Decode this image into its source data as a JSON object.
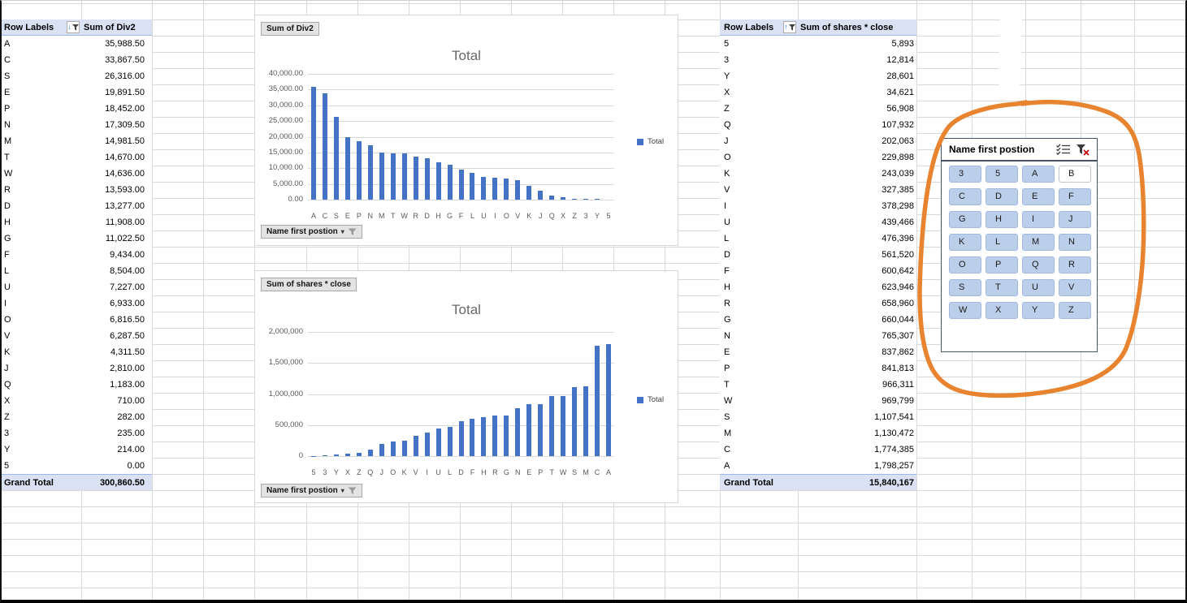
{
  "left_pivot": {
    "header": {
      "row_labels": "Row Labels",
      "values": "Sum of Div2",
      "sort": "descending"
    },
    "rows": [
      [
        "A",
        "35,988.50"
      ],
      [
        "C",
        "33,867.50"
      ],
      [
        "S",
        "26,316.00"
      ],
      [
        "E",
        "19,891.50"
      ],
      [
        "P",
        "18,452.00"
      ],
      [
        "N",
        "17,309.50"
      ],
      [
        "M",
        "14,981.50"
      ],
      [
        "T",
        "14,670.00"
      ],
      [
        "W",
        "14,636.00"
      ],
      [
        "R",
        "13,593.00"
      ],
      [
        "D",
        "13,277.00"
      ],
      [
        "H",
        "11,908.00"
      ],
      [
        "G",
        "11,022.50"
      ],
      [
        "F",
        "9,434.00"
      ],
      [
        "L",
        "8,504.00"
      ],
      [
        "U",
        "7,227.00"
      ],
      [
        "I",
        "6,933.00"
      ],
      [
        "O",
        "6,816.50"
      ],
      [
        "V",
        "6,287.50"
      ],
      [
        "K",
        "4,311.50"
      ],
      [
        "J",
        "2,810.00"
      ],
      [
        "Q",
        "1,183.00"
      ],
      [
        "X",
        "710.00"
      ],
      [
        "Z",
        "282.00"
      ],
      [
        "3",
        "235.00"
      ],
      [
        "Y",
        "214.00"
      ],
      [
        "5",
        "0.00"
      ]
    ],
    "grand_total": {
      "label": "Grand Total",
      "value": "300,860.50"
    }
  },
  "right_pivot": {
    "header": {
      "row_labels": "Row Labels",
      "values": "Sum of shares * close",
      "sort": "ascending"
    },
    "rows": [
      [
        "5",
        "5,893"
      ],
      [
        "3",
        "12,814"
      ],
      [
        "Y",
        "28,601"
      ],
      [
        "X",
        "34,621"
      ],
      [
        "Z",
        "56,908"
      ],
      [
        "Q",
        "107,932"
      ],
      [
        "J",
        "202,063"
      ],
      [
        "O",
        "229,898"
      ],
      [
        "K",
        "243,039"
      ],
      [
        "V",
        "327,385"
      ],
      [
        "I",
        "378,298"
      ],
      [
        "U",
        "439,466"
      ],
      [
        "L",
        "476,396"
      ],
      [
        "D",
        "561,520"
      ],
      [
        "F",
        "600,642"
      ],
      [
        "H",
        "623,946"
      ],
      [
        "R",
        "658,960"
      ],
      [
        "G",
        "660,044"
      ],
      [
        "N",
        "765,307"
      ],
      [
        "E",
        "837,862"
      ],
      [
        "P",
        "841,813"
      ],
      [
        "T",
        "966,311"
      ],
      [
        "W",
        "969,799"
      ],
      [
        "S",
        "1,107,541"
      ],
      [
        "M",
        "1,130,472"
      ],
      [
        "C",
        "1,774,385"
      ],
      [
        "A",
        "1,798,257"
      ]
    ],
    "grand_total": {
      "label": "Grand Total",
      "value": "15,840,167"
    }
  },
  "chart_data": [
    {
      "type": "bar",
      "title": "Total",
      "value_field_button": "Sum of Div2",
      "axis_field_button": "Name first postion",
      "legend": [
        "Total"
      ],
      "legend_position": "right",
      "grid": true,
      "categories": [
        "A",
        "C",
        "S",
        "E",
        "P",
        "N",
        "M",
        "T",
        "W",
        "R",
        "D",
        "H",
        "G",
        "F",
        "L",
        "U",
        "I",
        "O",
        "V",
        "K",
        "J",
        "Q",
        "X",
        "Z",
        "3",
        "Y",
        "5"
      ],
      "values": [
        35988.5,
        33867.5,
        26316,
        19891.5,
        18452,
        17309.5,
        14981.5,
        14670,
        14636,
        13593,
        13277,
        11908,
        11022.5,
        9434,
        8504,
        7227,
        6933,
        6816.5,
        6287.5,
        4311.5,
        2810,
        1183,
        710,
        282,
        235,
        214,
        0
      ],
      "ylim": [
        0,
        40000
      ],
      "yticks": [
        "40,000.00",
        "35,000.00",
        "30,000.00",
        "25,000.00",
        "20,000.00",
        "15,000.00",
        "10,000.00",
        "5,000.00",
        "0.00"
      ]
    },
    {
      "type": "bar",
      "title": "Total",
      "value_field_button": "Sum of shares * close",
      "axis_field_button": "Name first postion",
      "legend": [
        "Total"
      ],
      "legend_position": "right",
      "grid": true,
      "categories": [
        "5",
        "3",
        "Y",
        "X",
        "Z",
        "Q",
        "J",
        "O",
        "K",
        "V",
        "I",
        "U",
        "L",
        "D",
        "F",
        "H",
        "R",
        "G",
        "N",
        "E",
        "P",
        "T",
        "W",
        "S",
        "M",
        "C",
        "A"
      ],
      "values": [
        5893,
        12814,
        28601,
        34621,
        56908,
        107932,
        202063,
        229898,
        243039,
        327385,
        378298,
        439466,
        476396,
        561520,
        600642,
        623946,
        658960,
        660044,
        765307,
        837862,
        841813,
        966311,
        969799,
        1107541,
        1130472,
        1774385,
        1798257
      ],
      "ylim": [
        0,
        2000000
      ],
      "yticks": [
        "2,000,000",
        "1,500,000",
        "1,000,000",
        "500,000",
        "0"
      ]
    }
  ],
  "slicer": {
    "title": "Name first postion",
    "items": [
      {
        "label": "3",
        "selected": true
      },
      {
        "label": "5",
        "selected": true
      },
      {
        "label": "A",
        "selected": true
      },
      {
        "label": "B",
        "selected": false
      },
      {
        "label": "C",
        "selected": true
      },
      {
        "label": "D",
        "selected": true
      },
      {
        "label": "E",
        "selected": true
      },
      {
        "label": "F",
        "selected": true
      },
      {
        "label": "G",
        "selected": true
      },
      {
        "label": "H",
        "selected": true
      },
      {
        "label": "I",
        "selected": true
      },
      {
        "label": "J",
        "selected": true
      },
      {
        "label": "K",
        "selected": true
      },
      {
        "label": "L",
        "selected": true
      },
      {
        "label": "M",
        "selected": true
      },
      {
        "label": "N",
        "selected": true
      },
      {
        "label": "O",
        "selected": true
      },
      {
        "label": "P",
        "selected": true
      },
      {
        "label": "Q",
        "selected": true
      },
      {
        "label": "R",
        "selected": true
      },
      {
        "label": "S",
        "selected": true
      },
      {
        "label": "T",
        "selected": true
      },
      {
        "label": "U",
        "selected": true
      },
      {
        "label": "V",
        "selected": true
      },
      {
        "label": "W",
        "selected": true
      },
      {
        "label": "X",
        "selected": true
      },
      {
        "label": "Y",
        "selected": true
      },
      {
        "label": "Z",
        "selected": true
      }
    ]
  },
  "annotation": {
    "shape": "hand-drawn-ellipse",
    "color": "#e8842f",
    "target": "slicer"
  },
  "colors": {
    "bar": "#4472c4",
    "pivot_header_fill": "#d9e1f2",
    "sheet_grid": "#d9d9d9",
    "chart_grid": "#d9d9d9",
    "chart_text": "#595959",
    "slicer_border": "#44546a",
    "slicer_button_fill": "#bccfea",
    "annotation": "#e8842f"
  }
}
